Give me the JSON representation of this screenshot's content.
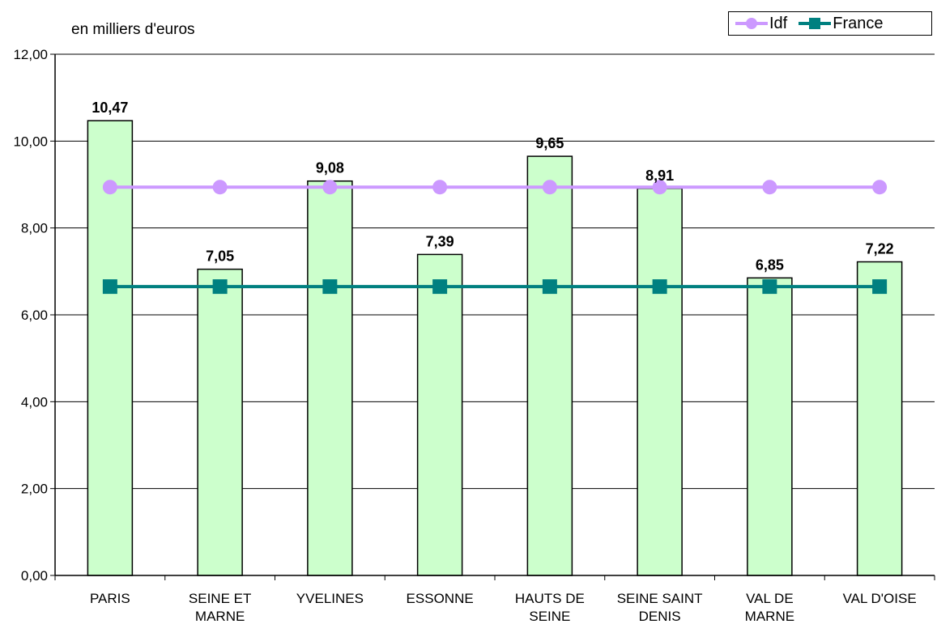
{
  "chart_data": {
    "type": "bar",
    "unit_label": "en milliers d'euros",
    "categories": [
      [
        "PARIS"
      ],
      [
        "SEINE ET",
        "MARNE"
      ],
      [
        "YVELINES"
      ],
      [
        "ESSONNE"
      ],
      [
        "HAUTS DE",
        "SEINE"
      ],
      [
        "SEINE SAINT",
        "DENIS"
      ],
      [
        "VAL DE",
        "MARNE"
      ],
      [
        "VAL D'OISE"
      ]
    ],
    "values": [
      10.47,
      7.05,
      9.08,
      7.39,
      9.65,
      8.91,
      6.85,
      7.22
    ],
    "value_labels": [
      "10,47",
      "7,05",
      "9,08",
      "7,39",
      "9,65",
      "8,91",
      "6,85",
      "7,22"
    ],
    "reference_lines": [
      {
        "name": "Idf",
        "value": 8.94,
        "color": "#cc99ff",
        "marker": "circle"
      },
      {
        "name": "France",
        "value": 6.65,
        "color": "#008080",
        "marker": "square"
      }
    ],
    "ylim": [
      0,
      12
    ],
    "yticks": [
      0,
      2,
      4,
      6,
      8,
      10,
      12
    ],
    "ytick_labels": [
      "0,00",
      "2,00",
      "4,00",
      "6,00",
      "8,00",
      "10,00",
      "12,00"
    ],
    "bar_color": "#ccffcc",
    "grid": true,
    "legend_position": "top-right"
  }
}
